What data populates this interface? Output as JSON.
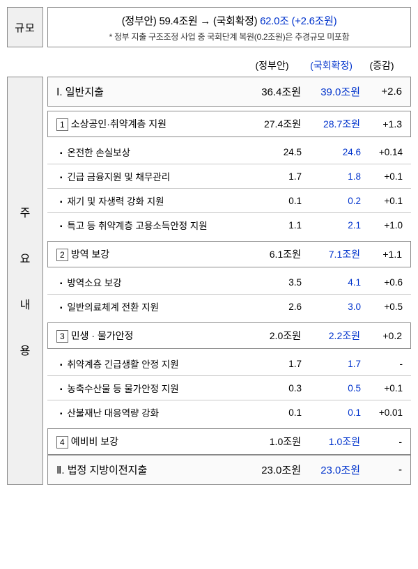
{
  "scale": {
    "label": "규모",
    "mainPrefix": "(정부안) 59.4조원 → (국회확정) ",
    "mainBlue": "62.0조 (+2.6조원)",
    "note": "* 정부 지출 구조조정 사업 중 국회단계 복원(0.2조원)은 추경규모 미포함"
  },
  "columns": {
    "c1": "(정부안)",
    "c2": "(국회확정)",
    "c3": "(증감)"
  },
  "sideLabel": [
    "주",
    "요",
    "내",
    "용"
  ],
  "sections": [
    {
      "type": "major",
      "label": "Ⅰ. 일반지출",
      "v1": "36.4조원",
      "v2": "39.0조원",
      "v3": "+2.6"
    },
    {
      "type": "sub",
      "num": "1",
      "label": "소상공인·취약계층 지원",
      "v1": "27.4조원",
      "v2": "28.7조원",
      "v3": "+1.3",
      "items": [
        {
          "label": "온전한 손실보상",
          "v1": "24.5",
          "v2": "24.6",
          "v3": "+0.14"
        },
        {
          "label": "긴급 금융지원 및 채무관리",
          "v1": "1.7",
          "v2": "1.8",
          "v3": "+0.1"
        },
        {
          "label": "재기 및 자생력 강화 지원",
          "v1": "0.1",
          "v2": "0.2",
          "v3": "+0.1"
        },
        {
          "label": "특고 등 취약계층 고용소득안정 지원",
          "v1": "1.1",
          "v2": "2.1",
          "v3": "+1.0"
        }
      ]
    },
    {
      "type": "sub",
      "num": "2",
      "label": "방역 보강",
      "v1": "6.1조원",
      "v2": "7.1조원",
      "v3": "+1.1",
      "items": [
        {
          "label": "방역소요 보강",
          "v1": "3.5",
          "v2": "4.1",
          "v3": "+0.6"
        },
        {
          "label": "일반의료체계 전환 지원",
          "v1": "2.6",
          "v2": "3.0",
          "v3": "+0.5"
        }
      ]
    },
    {
      "type": "sub",
      "num": "3",
      "label": "민생 · 물가안정",
      "v1": "2.0조원",
      "v2": "2.2조원",
      "v3": "+0.2",
      "items": [
        {
          "label": "취약계층 긴급생활 안정 지원",
          "v1": "1.7",
          "v2": "1.7",
          "v3": "-"
        },
        {
          "label": "농축수산물 등 물가안정 지원",
          "v1": "0.3",
          "v2": "0.5",
          "v3": "+0.1"
        },
        {
          "label": "산불재난 대응역량 강화",
          "v1": "0.1",
          "v2": "0.1",
          "v3": "+0.01"
        }
      ]
    },
    {
      "type": "sub",
      "num": "4",
      "label": "예비비 보강",
      "v1": "1.0조원",
      "v2": "1.0조원",
      "v3": "-"
    },
    {
      "type": "major",
      "label": "Ⅱ. 법정 지방이전지출",
      "v1": "23.0조원",
      "v2": "23.0조원",
      "v3": "-"
    }
  ]
}
